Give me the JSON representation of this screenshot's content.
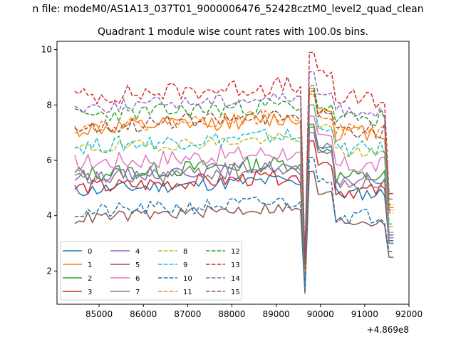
{
  "chart_data": {
    "type": "line",
    "suptitle": "n file: modeM0/AS1A13_037T01_9000006476_52428cztM0_level2_quad_clean",
    "title": "Quadrant 1 module wise count rates with 100.0s bins.",
    "xlabel": "",
    "ylabel": "",
    "x_offset_label": "+4.869e8",
    "xlim": [
      84050,
      92000
    ],
    "ylim": [
      0.8,
      10.3
    ],
    "xticks": [
      85000,
      86000,
      87000,
      88000,
      89000,
      90000,
      91000,
      92000
    ],
    "yticks": [
      2,
      4,
      6,
      8,
      10
    ],
    "x_start": 84450,
    "x_step": 100,
    "x_end": 91650,
    "legend": {
      "location": "lower left",
      "ncol": 4
    },
    "colors": [
      "#1f77b4",
      "#ff7f0e",
      "#2ca02c",
      "#d62728",
      "#9467bd",
      "#8c564b",
      "#e377c2",
      "#7f7f7f",
      "#bcbd22",
      "#17becf",
      "#1f77b4",
      "#ff7f0e",
      "#2ca02c",
      "#d62728",
      "#9467bd",
      "#8c564b"
    ],
    "series": [
      {
        "name": "0",
        "style": "solid",
        "base": 4.9,
        "dip": 1.3,
        "peak": 7.3,
        "amp": 0.25,
        "end": 3.1,
        "seed": 11
      },
      {
        "name": "1",
        "style": "solid",
        "base": 7.1,
        "dip": 1.7,
        "peak": 8.6,
        "amp": 0.3,
        "end": 4.3,
        "seed": 12
      },
      {
        "name": "2",
        "style": "solid",
        "base": 5.5,
        "dip": 1.6,
        "peak": 7.2,
        "amp": 0.3,
        "end": 3.3,
        "seed": 13
      },
      {
        "name": "3",
        "style": "solid",
        "base": 5.0,
        "dip": 1.5,
        "peak": 6.7,
        "amp": 0.28,
        "end": 3.0,
        "seed": 14
      },
      {
        "name": "4",
        "style": "solid",
        "base": 5.4,
        "dip": 1.5,
        "peak": 7.0,
        "amp": 0.25,
        "end": 3.2,
        "seed": 15
      },
      {
        "name": "5",
        "style": "solid",
        "base": 3.9,
        "dip": 1.2,
        "peak": 5.6,
        "amp": 0.22,
        "end": 2.5,
        "seed": 16
      },
      {
        "name": "6",
        "style": "solid",
        "base": 5.9,
        "dip": 1.7,
        "peak": 7.6,
        "amp": 0.35,
        "end": 3.4,
        "seed": 17
      },
      {
        "name": "7",
        "style": "solid",
        "base": 5.3,
        "dip": 1.4,
        "peak": 7.3,
        "amp": 0.3,
        "end": 3.0,
        "seed": 18
      },
      {
        "name": "8",
        "style": "dashed",
        "base": 6.4,
        "dip": 1.9,
        "peak": 8.0,
        "amp": 0.22,
        "end": 3.6,
        "seed": 19
      },
      {
        "name": "9",
        "style": "dashed",
        "base": 6.5,
        "dip": 1.9,
        "peak": 8.0,
        "amp": 0.3,
        "end": 3.7,
        "seed": 20
      },
      {
        "name": "10",
        "style": "dashed",
        "base": 4.1,
        "dip": 1.3,
        "peak": 6.1,
        "amp": 0.28,
        "end": 2.7,
        "seed": 21
      },
      {
        "name": "11",
        "style": "dashed",
        "base": 7.2,
        "dip": 2.0,
        "peak": 8.4,
        "amp": 0.25,
        "end": 4.1,
        "seed": 22
      },
      {
        "name": "12",
        "style": "dashed",
        "base": 7.6,
        "dip": 2.2,
        "peak": 8.7,
        "amp": 0.3,
        "end": 4.4,
        "seed": 23
      },
      {
        "name": "13",
        "style": "dashed",
        "base": 8.3,
        "dip": 2.4,
        "peak": 9.9,
        "amp": 0.35,
        "end": 4.8,
        "seed": 24
      },
      {
        "name": "14",
        "style": "dashed",
        "base": 7.9,
        "dip": 2.3,
        "peak": 9.2,
        "amp": 0.25,
        "end": 4.6,
        "seed": 25
      },
      {
        "name": "15",
        "style": "dashed",
        "base": 7.2,
        "dip": 2.1,
        "peak": 8.5,
        "amp": 0.3,
        "end": 4.2,
        "seed": 26
      }
    ]
  }
}
